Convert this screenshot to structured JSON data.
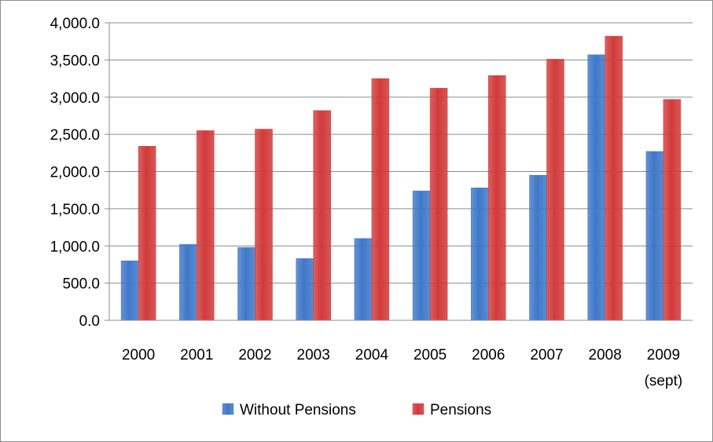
{
  "chart_data": {
    "type": "bar",
    "categories": [
      "2000",
      "2001",
      "2002",
      "2003",
      "2004",
      "2005",
      "2006",
      "2007",
      "2008",
      "2009"
    ],
    "category_sublabels": [
      "",
      "",
      "",
      "",
      "",
      "",
      "",
      "",
      "",
      "(sept)"
    ],
    "series": [
      {
        "name": "Without Pensions",
        "color": "#3f78c9",
        "values": [
          800,
          1020,
          980,
          830,
          1100,
          1740,
          1780,
          1950,
          3570,
          2270
        ]
      },
      {
        "name": "Pensions",
        "color": "#d23a3a",
        "values": [
          2340,
          2550,
          2570,
          2820,
          3250,
          3120,
          3290,
          3510,
          3820,
          2970
        ]
      }
    ],
    "ylim": [
      0,
      4000
    ],
    "yticks": [
      "0.0",
      "500.0",
      "1,000.0",
      "1,500.0",
      "2,000.0",
      "2,500.0",
      "3,000.0",
      "3,500.0",
      "4,000.0"
    ],
    "title": "",
    "xlabel": "",
    "ylabel": "",
    "grid": true,
    "legend_position": "bottom"
  }
}
